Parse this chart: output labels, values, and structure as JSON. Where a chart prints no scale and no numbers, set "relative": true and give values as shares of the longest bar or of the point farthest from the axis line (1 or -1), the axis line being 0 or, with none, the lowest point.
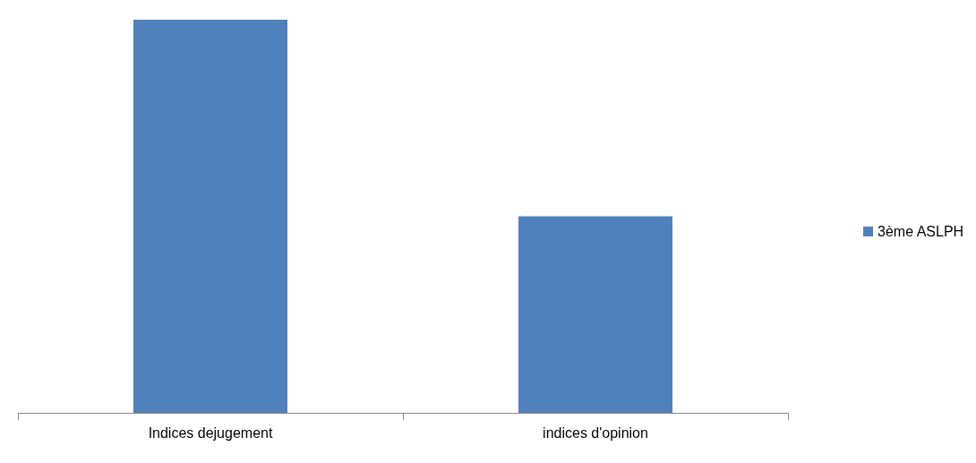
{
  "chart_data": {
    "type": "bar",
    "categories": [
      "Indices dejugement",
      "indices d'opinion"
    ],
    "series": [
      {
        "name": "3ème ASLPH",
        "color": "#4f81bd",
        "values": [
          1,
          0.5
        ]
      }
    ],
    "relative": true,
    "legend": "right",
    "grid": false
  }
}
